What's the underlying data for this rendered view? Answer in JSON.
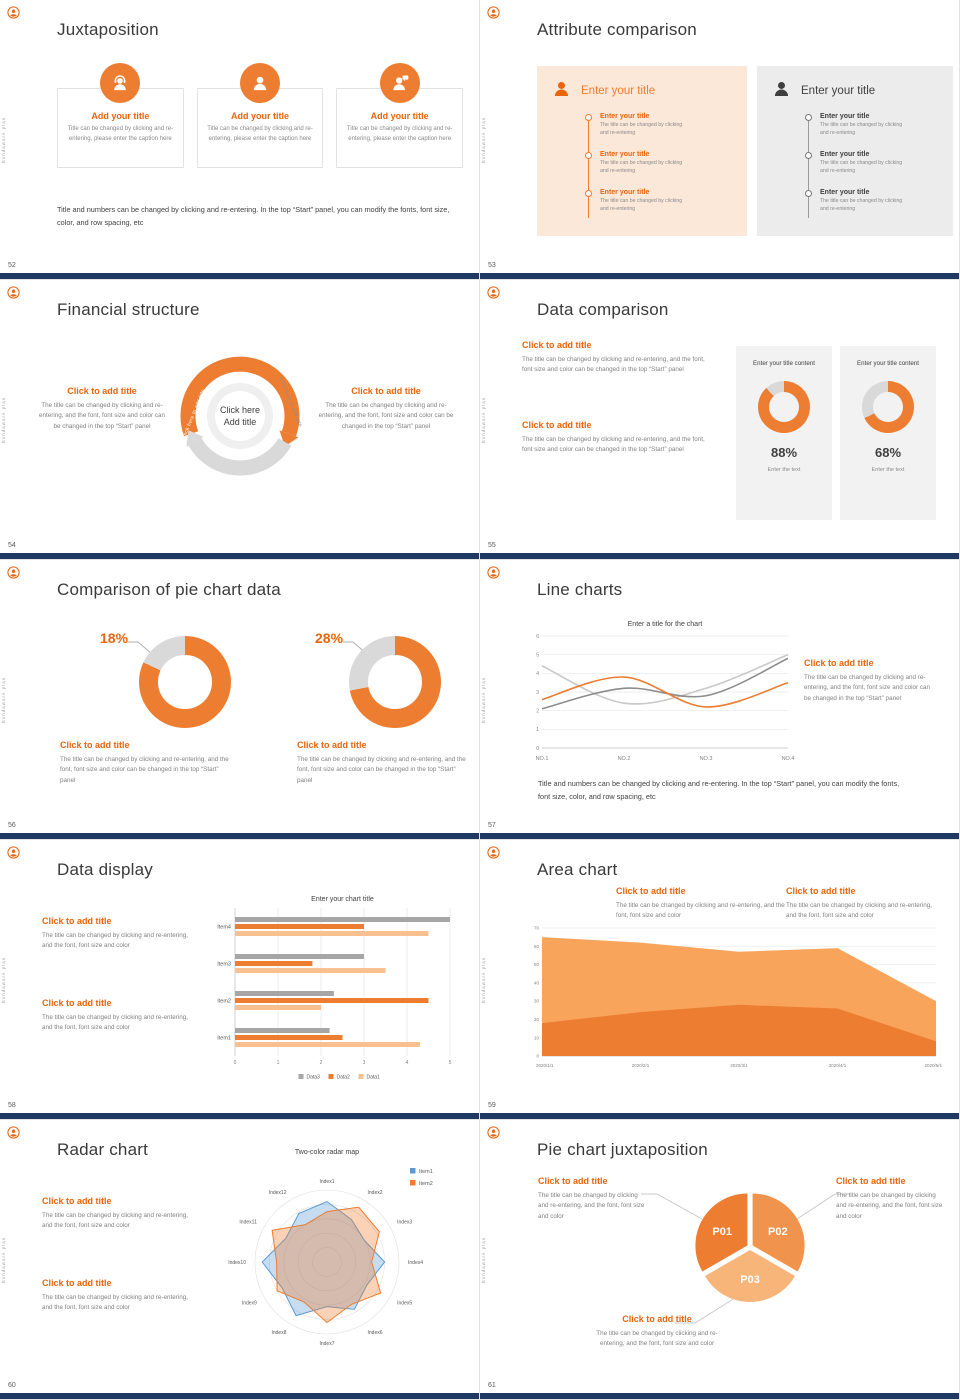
{
  "colors": {
    "accent": "#ED7D31",
    "accent_text": "#E8650D",
    "navy": "#1F3864",
    "light_gray": "#D9D9D9",
    "gray_text": "#828282",
    "dark_text": "#404040",
    "blue": "#5B9BD5"
  },
  "branding": {
    "side_text": "Bundaware plan",
    "logo": "school-badge-icon"
  },
  "slides": [
    {
      "number": "52",
      "title": "Juxtaposition",
      "cards": [
        {
          "icon": "support-agent-icon",
          "title": "Add your title",
          "caption": "Title can be changed by clicking and re-entering, please enter the caption here"
        },
        {
          "icon": "person-icon",
          "title": "Add your title",
          "caption": "Title can be changed by clicking and re-entering, please enter the caption here"
        },
        {
          "icon": "person-chat-icon",
          "title": "Add your title",
          "caption": "Title can be changed by clicking and re-entering, please enter the caption here"
        }
      ],
      "footer": "Title and numbers can be changed by clicking and re-entering. In the top “Start” panel, you can modify the fonts, font size, color, and row spacing, etc"
    },
    {
      "number": "53",
      "title": "Attribute comparison",
      "left_panel": {
        "header": "Enter your title",
        "items": [
          {
            "title": "Enter your title",
            "caption": "The title can be changed by clicking and re-entering"
          },
          {
            "title": "Enter your title",
            "caption": "The title can be changed by clicking and re-entering"
          },
          {
            "title": "Enter your title",
            "caption": "The title can be changed by clicking and re-entering"
          }
        ]
      },
      "right_panel": {
        "header": "Enter your title",
        "items": [
          {
            "title": "Enter your title",
            "caption": "The title can be changed by clicking and re-entering"
          },
          {
            "title": "Enter your title",
            "caption": "The title can be changed by clicking and re-entering"
          },
          {
            "title": "Enter your title",
            "caption": "The title can be changed by clicking and re-entering"
          }
        ]
      }
    },
    {
      "number": "54",
      "title": "Financial structure",
      "left_block": {
        "heading": "Click to add title",
        "body": "The title can be changed by clicking and re-entering, and the font, font size and color can be changed in the top “Start” panel"
      },
      "right_block": {
        "heading": "Click to add title",
        "body": "The title can be changed by clicking and re-entering, and the font, font size and color can be changed in the top “Start” panel"
      },
      "center": {
        "line1": "Click here",
        "line2": "Add title",
        "arc_label_left": "Click here to add title",
        "arc_label_right": "Click here to add title"
      }
    },
    {
      "number": "55",
      "title": "Data comparison",
      "blocks": [
        {
          "heading": "Click to add title",
          "body": "The title can be changed by clicking and re-entering, and the font, font size and color can be changed in the top “Start” panel"
        },
        {
          "heading": "Click to add title",
          "body": "The title can be changed by clicking and re-entering, and the font, font size and color can be changed in the top “Start” panel"
        }
      ],
      "cards": [
        {
          "header": "Enter your title content",
          "orange_pct": 88,
          "percent_label": "88%",
          "caption": "Enter the text"
        },
        {
          "header": "Enter your title content",
          "orange_pct": 68,
          "percent_label": "68%",
          "caption": "Enter the text"
        }
      ]
    },
    {
      "number": "56",
      "title": "Comparison of pie chart data",
      "donuts": [
        {
          "label": "18%",
          "gray_pct": 18,
          "orange_pct": 82
        },
        {
          "label": "28%",
          "gray_pct": 28,
          "orange_pct": 72
        }
      ],
      "blocks": [
        {
          "heading": "Click to add title",
          "body": "The title can be changed by clicking and re-entering, and the font, font size and color can be changed in the top “Start” panel"
        },
        {
          "heading": "Click to add title",
          "body": "The title can be changed by clicking and re-entering, and the font, font size and color can be changed in the top “Start” panel"
        }
      ]
    },
    {
      "number": "57",
      "title": "Line charts",
      "side_block": {
        "heading": "Click to add title",
        "body": "The title can be changed by clicking and re-entering, and the font, font size and color can be changed in the top “Start” panel"
      },
      "footer": "Title and numbers can be changed by clicking and re-entering. In the top “Start” panel, you can modify the fonts, font size, color, and row spacing, etc",
      "chart_data": {
        "type": "line",
        "title": "Enter a title for the chart",
        "x_labels": [
          "NO.1",
          "NO.2",
          "NO.3",
          "NO.4"
        ],
        "ylim": [
          0,
          6
        ],
        "ytick_step": 1,
        "series": [
          {
            "name": "series-light-gray",
            "color": "#C9C9C9",
            "values": [
              4.4,
              2.4,
              3.2,
              5.0
            ]
          },
          {
            "name": "series-dark-gray",
            "color": "#8C8C8C",
            "values": [
              2.1,
              3.2,
              2.8,
              4.8
            ]
          },
          {
            "name": "series-orange",
            "color": "#ED7D31",
            "values": [
              2.6,
              3.8,
              2.2,
              3.5
            ]
          }
        ]
      }
    },
    {
      "number": "58",
      "title": "Data display",
      "blocks": [
        {
          "heading": "Click to add title",
          "body": "The title can be changed by clicking and re-entering, and the font, font size and color"
        },
        {
          "heading": "Click to add title",
          "body": "The title can be changed by clicking and re-entering, and the font, font size and color"
        }
      ],
      "chart_data": {
        "type": "bars",
        "title": "Enter your chart title",
        "categories": [
          "Item1",
          "Item2",
          "Item3",
          "Item4"
        ],
        "xlim": [
          0,
          5
        ],
        "series": [
          {
            "name": "Data3",
            "color": "#A6A6A6",
            "values": [
              2.2,
              2.3,
              3.0,
              5.0
            ]
          },
          {
            "name": "Data2",
            "color": "#ED7D31",
            "values": [
              2.5,
              4.5,
              1.8,
              3.0
            ]
          },
          {
            "name": "Data1",
            "color": "#FAC090",
            "values": [
              4.3,
              2.0,
              3.5,
              4.5
            ]
          }
        ],
        "legend": [
          "Data3",
          "Data2",
          "Data1"
        ]
      }
    },
    {
      "number": "59",
      "title": "Area chart",
      "blocks": [
        {
          "heading": "Click to add title",
          "body": "The title can be changed by clicking and re-entering, and the font, font size and color"
        },
        {
          "heading": "Click to add title",
          "body": "The title can be changed by clicking and re-entering, and the font, font size and color"
        }
      ],
      "chart_data": {
        "type": "area",
        "x_labels": [
          "2020/1/1",
          "2020/2/1",
          "2020/3/1",
          "2020/4/1",
          "2020/5/1"
        ],
        "ylim": [
          0,
          70
        ],
        "ytick_step": 10,
        "series": [
          {
            "name": "upper",
            "color": "#F9A45B",
            "values": [
              65,
              62,
              57,
              59,
              30
            ]
          },
          {
            "name": "lower",
            "color": "#ED7D31",
            "values": [
              18,
              24,
              28,
              26,
              8
            ]
          }
        ]
      }
    },
    {
      "number": "60",
      "title": "Radar chart",
      "blocks": [
        {
          "heading": "Click to add title",
          "body": "The title can be changed by clicking and re-entering, and the font, font size and color"
        },
        {
          "heading": "Click to add title",
          "body": "The title can be changed by clicking and re-entering, and the font, font size and color"
        }
      ],
      "chart_data": {
        "type": "radar",
        "title": "Two-color radar map",
        "axes": [
          "Index1",
          "Index2",
          "Index3",
          "Index4",
          "Index5",
          "Index6",
          "Index7",
          "Index8",
          "Index9",
          "Index10",
          "Index11",
          "Index12"
        ],
        "max": 5,
        "series": [
          {
            "name": "Item1",
            "color": "#5B9BD5",
            "values": [
              4.2,
              3.4,
              3.0,
              4.0,
              3.2,
              3.8,
              3.1,
              4.3,
              3.6,
              4.5,
              3.3,
              3.9
            ]
          },
          {
            "name": "Item2",
            "color": "#ED7D31",
            "values": [
              3.5,
              4.4,
              4.2,
              3.1,
              4.3,
              3.4,
              4.2,
              3.2,
              4.0,
              3.5,
              4.4,
              3.0
            ]
          }
        ]
      }
    },
    {
      "number": "61",
      "title": "Pie chart juxtaposition",
      "blocks": [
        {
          "heading": "Click to add title",
          "body": "The title can be changed by clicking and re-entering, and the font, font size and color"
        },
        {
          "heading": "Click to add title",
          "body": "The title can be changed by clicking and re-entering, and the font, font size and color"
        },
        {
          "heading": "Click to add title",
          "body": "The title can be changed by clicking and re-entering, and the font, font size and color"
        }
      ],
      "chart_data": {
        "type": "pie",
        "segments": [
          {
            "label": "P01",
            "color": "#ED7D31"
          },
          {
            "label": "P02",
            "color": "#F0944D"
          },
          {
            "label": "P03",
            "color": "#F8B57A"
          }
        ]
      }
    }
  ]
}
